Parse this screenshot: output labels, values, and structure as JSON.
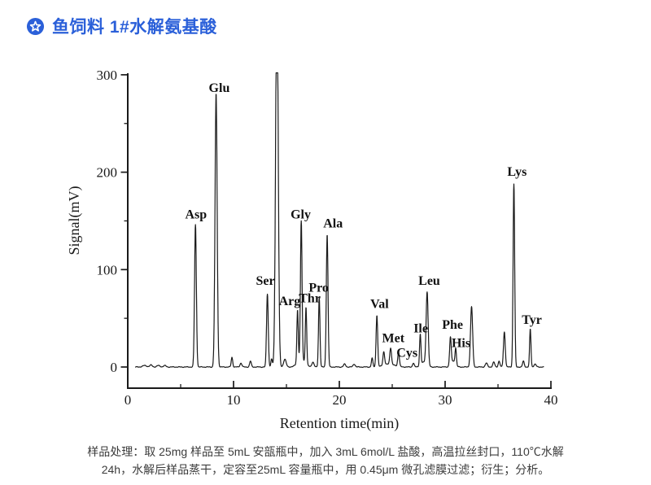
{
  "header": {
    "badge_icon": "star-badge-icon",
    "title": "鱼饲料 1#水解氨基酸",
    "accent_color": "#2b60d9"
  },
  "chart_data": {
    "type": "line",
    "title": "",
    "xlabel": "Retention time(min)",
    "ylabel": "Signal(mV)",
    "xlim": [
      0,
      40
    ],
    "ylim": [
      -22,
      303
    ],
    "x_major_ticks": [
      0,
      10,
      20,
      30,
      40
    ],
    "x_minor_ticks": [
      5,
      15,
      25,
      35
    ],
    "y_major_ticks": [
      0,
      100,
      200,
      300
    ],
    "y_minor_ticks": [
      50,
      150,
      250
    ],
    "grid": false,
    "legend": "none",
    "line_color": "#1a1a1a",
    "clip_mV": 302,
    "off_scale_peak": {
      "time_min": 14.1,
      "note": "unlabeled peak exceeds 300 mV, clipped at plot top"
    },
    "peaks": [
      {
        "name": null,
        "time_min": 1.6,
        "height_mV": 1.5,
        "sigma_min": 0.2
      },
      {
        "name": null,
        "time_min": 2.2,
        "height_mV": 2,
        "sigma_min": 0.12
      },
      {
        "name": null,
        "time_min": 2.9,
        "height_mV": 1.5,
        "sigma_min": 0.15
      },
      {
        "name": null,
        "time_min": 3.5,
        "height_mV": 1.5,
        "sigma_min": 0.12
      },
      {
        "name": "Asp",
        "time_min": 6.4,
        "height_mV": 146,
        "sigma_min": 0.085
      },
      {
        "name": "Glu",
        "time_min": 8.35,
        "height_mV": 281,
        "sigma_min": 0.1
      },
      {
        "name": null,
        "time_min": 9.85,
        "height_mV": 10,
        "sigma_min": 0.07
      },
      {
        "name": null,
        "time_min": 10.7,
        "height_mV": 4,
        "sigma_min": 0.09
      },
      {
        "name": null,
        "time_min": 11.6,
        "height_mV": 6,
        "sigma_min": 0.08
      },
      {
        "name": "Ser",
        "time_min": 13.2,
        "height_mV": 75,
        "sigma_min": 0.08
      },
      {
        "name": null,
        "time_min": 13.6,
        "height_mV": 8,
        "sigma_min": 0.07
      },
      {
        "name": null,
        "time_min": 14.1,
        "height_mV": 400,
        "sigma_min": 0.12
      },
      {
        "name": null,
        "time_min": 14.85,
        "height_mV": 8,
        "sigma_min": 0.12
      },
      {
        "name": null,
        "time_min": 16.4,
        "height_mV": 8,
        "sigma_min": 0.35
      },
      {
        "name": "Arg",
        "time_min": 16.05,
        "height_mV": 54,
        "sigma_min": 0.065
      },
      {
        "name": "Gly",
        "time_min": 16.4,
        "height_mV": 142,
        "sigma_min": 0.075
      },
      {
        "name": "Thr",
        "time_min": 16.85,
        "height_mV": 58,
        "sigma_min": 0.065
      },
      {
        "name": null,
        "time_min": 17.5,
        "height_mV": 5,
        "sigma_min": 0.1
      },
      {
        "name": "Pro",
        "time_min": 18.1,
        "height_mV": 71,
        "sigma_min": 0.07
      },
      {
        "name": "Ala",
        "time_min": 18.85,
        "height_mV": 136,
        "sigma_min": 0.08
      },
      {
        "name": null,
        "time_min": 20.5,
        "height_mV": 3,
        "sigma_min": 0.1
      },
      {
        "name": null,
        "time_min": 21.4,
        "height_mV": 3,
        "sigma_min": 0.1
      },
      {
        "name": null,
        "time_min": 23.1,
        "height_mV": 9,
        "sigma_min": 0.07
      },
      {
        "name": "Val",
        "time_min": 23.55,
        "height_mV": 53,
        "sigma_min": 0.075
      },
      {
        "name": null,
        "time_min": 24.2,
        "height_mV": 14,
        "sigma_min": 0.08
      },
      {
        "name": null,
        "time_min": 24.7,
        "height_mV": 3,
        "sigma_min": 0.5
      },
      {
        "name": "Met",
        "time_min": 24.85,
        "height_mV": 17,
        "sigma_min": 0.08
      },
      {
        "name": "Cys",
        "time_min": 25.6,
        "height_mV": 14,
        "sigma_min": 0.08
      },
      {
        "name": null,
        "time_min": 27.0,
        "height_mV": 4,
        "sigma_min": 0.08
      },
      {
        "name": null,
        "time_min": 28.0,
        "height_mV": 5,
        "sigma_min": 0.25
      },
      {
        "name": "Ile",
        "time_min": 27.65,
        "height_mV": 32,
        "sigma_min": 0.065
      },
      {
        "name": "Leu",
        "time_min": 28.3,
        "height_mV": 75,
        "sigma_min": 0.095
      },
      {
        "name": null,
        "time_min": 30.75,
        "height_mV": 6,
        "sigma_min": 0.2
      },
      {
        "name": "Phe",
        "time_min": 30.5,
        "height_mV": 28,
        "sigma_min": 0.075
      },
      {
        "name": "His",
        "time_min": 31.0,
        "height_mV": 17,
        "sigma_min": 0.065
      },
      {
        "name": null,
        "time_min": 32.5,
        "height_mV": 62,
        "sigma_min": 0.1
      },
      {
        "name": null,
        "time_min": 33.9,
        "height_mV": 4,
        "sigma_min": 0.1
      },
      {
        "name": null,
        "time_min": 34.6,
        "height_mV": 5,
        "sigma_min": 0.09
      },
      {
        "name": null,
        "time_min": 35.1,
        "height_mV": 6,
        "sigma_min": 0.08
      },
      {
        "name": null,
        "time_min": 35.6,
        "height_mV": 36,
        "sigma_min": 0.085
      },
      {
        "name": "Lys",
        "time_min": 36.5,
        "height_mV": 188,
        "sigma_min": 0.075
      },
      {
        "name": null,
        "time_min": 37.4,
        "height_mV": 6,
        "sigma_min": 0.08
      },
      {
        "name": "Tyr",
        "time_min": 38.05,
        "height_mV": 39,
        "sigma_min": 0.065
      },
      {
        "name": null,
        "time_min": 38.5,
        "height_mV": 3,
        "sigma_min": 0.1
      }
    ],
    "peak_labels": [
      {
        "text": "Asp",
        "t": 6.45,
        "mv": 157
      },
      {
        "text": "Glu",
        "t": 8.65,
        "mv": 287
      },
      {
        "text": "Ser",
        "t": 13.0,
        "mv": 89
      },
      {
        "text": "Arg",
        "t": 15.3,
        "mv": 68
      },
      {
        "text": "Gly",
        "t": 16.35,
        "mv": 157
      },
      {
        "text": "Thr",
        "t": 17.2,
        "mv": 71
      },
      {
        "text": "Pro",
        "t": 18.05,
        "mv": 82
      },
      {
        "text": "Ala",
        "t": 19.4,
        "mv": 148
      },
      {
        "text": "Val",
        "t": 23.8,
        "mv": 65
      },
      {
        "text": "Met",
        "t": 25.1,
        "mv": 30
      },
      {
        "text": "Cys",
        "t": 26.4,
        "mv": 15
      },
      {
        "text": "Ile",
        "t": 27.7,
        "mv": 40
      },
      {
        "text": "Leu",
        "t": 28.5,
        "mv": 89
      },
      {
        "text": "Phe",
        "t": 30.7,
        "mv": 44
      },
      {
        "text": "His",
        "t": 31.5,
        "mv": 25
      },
      {
        "text": "Lys",
        "t": 36.8,
        "mv": 201
      },
      {
        "text": "Tyr",
        "t": 38.2,
        "mv": 49
      }
    ]
  },
  "footer": {
    "line1": "样品处理：取 25mg 样品至 5mL 安瓿瓶中，加入 3mL 6mol/L 盐酸，高温拉丝封口，110℃水解",
    "line2": "24h，水解后样品蒸干，定容至25mL 容量瓶中，用 0.45μm 微孔滤膜过滤；衍生；分析。"
  }
}
